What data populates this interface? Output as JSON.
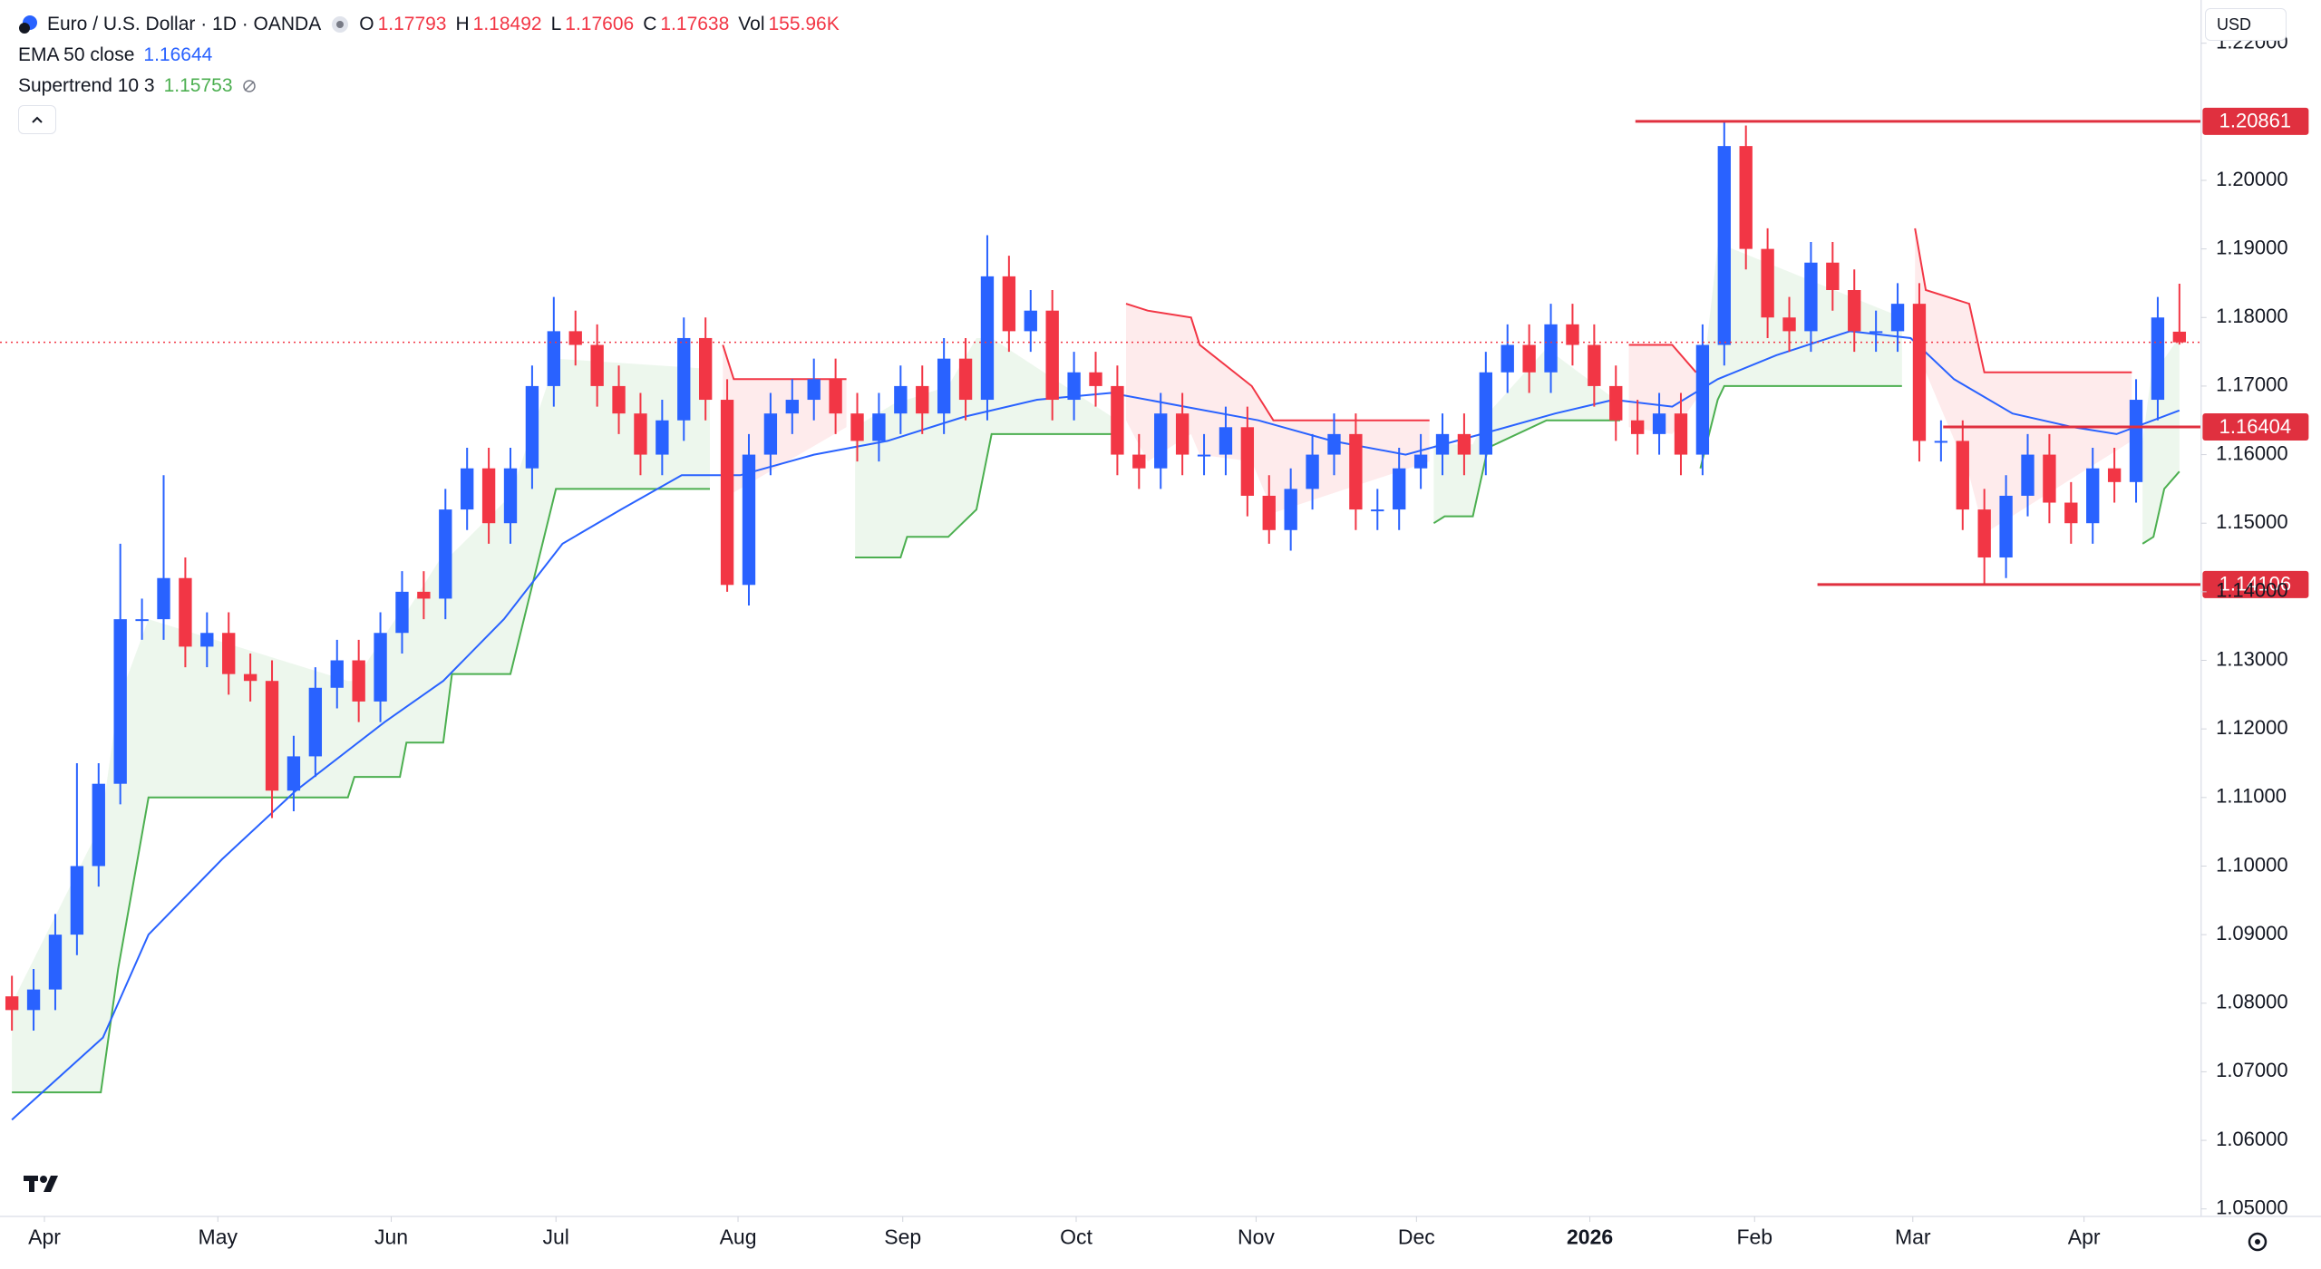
{
  "chart_data": {
    "type": "candlestick",
    "title": "Euro / U.S. Dollar · 1D · OANDA",
    "currency": "USD",
    "header": {
      "labels": [
        "O",
        "H",
        "L",
        "C"
      ],
      "volume_label": "Vol",
      "volume": 155960,
      "volume_value_label": "155.96K"
    },
    "up_color": "#2962ff",
    "down_color": "#f23645",
    "open": [
      1.081,
      1.079,
      1.082,
      1.09,
      1.1,
      1.112,
      1.136,
      1.136,
      1.142,
      1.132,
      1.134,
      1.128,
      1.127,
      1.111,
      1.116,
      1.126,
      1.13,
      1.124,
      1.134,
      1.14,
      1.139,
      1.152,
      1.158,
      1.15,
      1.158,
      1.17,
      1.178,
      1.176,
      1.17,
      1.166,
      1.16,
      1.165,
      1.177,
      1.168,
      1.141,
      1.16,
      1.166,
      1.168,
      1.171,
      1.166,
      1.162,
      1.166,
      1.17,
      1.166,
      1.174,
      1.168,
      1.186,
      1.178,
      1.181,
      1.168,
      1.172,
      1.17,
      1.16,
      1.158,
      1.166,
      1.16,
      1.16,
      1.164,
      1.154,
      1.149,
      1.155,
      1.16,
      1.163,
      1.152,
      1.152,
      1.158,
      1.16,
      1.163,
      1.16,
      1.172,
      1.176,
      1.172,
      1.179,
      1.176,
      1.17,
      1.165,
      1.163,
      1.166,
      1.16,
      1.176,
      1.205,
      1.19,
      1.18,
      1.178,
      1.188,
      1.184,
      1.178,
      1.178,
      1.182,
      1.162,
      1.162,
      1.152,
      1.145,
      1.154,
      1.16,
      1.153,
      1.15,
      1.158,
      1.156,
      1.168,
      1.17793
    ],
    "high": [
      1.084,
      1.085,
      1.093,
      1.115,
      1.115,
      1.147,
      1.139,
      1.157,
      1.145,
      1.137,
      1.137,
      1.131,
      1.13,
      1.119,
      1.129,
      1.133,
      1.133,
      1.137,
      1.143,
      1.143,
      1.155,
      1.161,
      1.161,
      1.161,
      1.173,
      1.183,
      1.181,
      1.179,
      1.173,
      1.169,
      1.168,
      1.18,
      1.18,
      1.171,
      1.163,
      1.169,
      1.171,
      1.174,
      1.174,
      1.169,
      1.169,
      1.173,
      1.173,
      1.177,
      1.177,
      1.192,
      1.189,
      1.184,
      1.184,
      1.175,
      1.175,
      1.173,
      1.163,
      1.169,
      1.169,
      1.163,
      1.167,
      1.167,
      1.157,
      1.158,
      1.163,
      1.166,
      1.166,
      1.155,
      1.161,
      1.163,
      1.166,
      1.166,
      1.175,
      1.179,
      1.179,
      1.182,
      1.182,
      1.179,
      1.173,
      1.168,
      1.169,
      1.169,
      1.179,
      1.2086,
      1.208,
      1.193,
      1.183,
      1.191,
      1.191,
      1.187,
      1.181,
      1.185,
      1.185,
      1.165,
      1.165,
      1.155,
      1.157,
      1.163,
      1.163,
      1.156,
      1.161,
      1.161,
      1.171,
      1.183,
      1.18492
    ],
    "low": [
      1.076,
      1.076,
      1.079,
      1.087,
      1.097,
      1.109,
      1.133,
      1.133,
      1.129,
      1.129,
      1.125,
      1.124,
      1.107,
      1.108,
      1.113,
      1.123,
      1.121,
      1.121,
      1.131,
      1.136,
      1.136,
      1.149,
      1.147,
      1.147,
      1.155,
      1.167,
      1.173,
      1.167,
      1.163,
      1.157,
      1.157,
      1.162,
      1.165,
      1.14,
      1.138,
      1.157,
      1.163,
      1.165,
      1.163,
      1.159,
      1.159,
      1.163,
      1.163,
      1.163,
      1.165,
      1.165,
      1.175,
      1.175,
      1.165,
      1.165,
      1.167,
      1.157,
      1.155,
      1.155,
      1.157,
      1.157,
      1.157,
      1.151,
      1.147,
      1.146,
      1.152,
      1.157,
      1.149,
      1.149,
      1.149,
      1.155,
      1.157,
      1.157,
      1.157,
      1.169,
      1.169,
      1.169,
      1.173,
      1.167,
      1.162,
      1.16,
      1.16,
      1.157,
      1.157,
      1.173,
      1.187,
      1.177,
      1.175,
      1.175,
      1.181,
      1.175,
      1.175,
      1.175,
      1.159,
      1.159,
      1.149,
      1.14106,
      1.142,
      1.151,
      1.15,
      1.147,
      1.147,
      1.153,
      1.153,
      1.165,
      1.17606
    ],
    "close": [
      1.079,
      1.082,
      1.09,
      1.1,
      1.112,
      1.136,
      1.136,
      1.142,
      1.132,
      1.134,
      1.128,
      1.127,
      1.111,
      1.116,
      1.126,
      1.13,
      1.124,
      1.134,
      1.14,
      1.139,
      1.152,
      1.158,
      1.15,
      1.158,
      1.17,
      1.178,
      1.176,
      1.17,
      1.166,
      1.16,
      1.165,
      1.177,
      1.168,
      1.141,
      1.16,
      1.166,
      1.168,
      1.171,
      1.166,
      1.162,
      1.166,
      1.17,
      1.166,
      1.174,
      1.168,
      1.186,
      1.178,
      1.181,
      1.168,
      1.172,
      1.17,
      1.16,
      1.158,
      1.166,
      1.16,
      1.16,
      1.164,
      1.154,
      1.149,
      1.155,
      1.16,
      1.163,
      1.152,
      1.152,
      1.158,
      1.16,
      1.163,
      1.16,
      1.172,
      1.176,
      1.172,
      1.179,
      1.176,
      1.17,
      1.165,
      1.163,
      1.166,
      1.16,
      1.176,
      1.205,
      1.19,
      1.18,
      1.178,
      1.188,
      1.184,
      1.178,
      1.178,
      1.182,
      1.162,
      1.162,
      1.152,
      1.145,
      1.154,
      1.16,
      1.153,
      1.15,
      1.158,
      1.156,
      1.168,
      1.18,
      1.17638
    ],
    "xlim": [
      -0.55,
      101
    ],
    "xticks": [
      {
        "value": 1.5,
        "label": "Apr"
      },
      {
        "value": 9.5,
        "label": "May"
      },
      {
        "value": 17.5,
        "label": "Jun"
      },
      {
        "value": 25.1,
        "label": "Jul"
      },
      {
        "value": 33.5,
        "label": "Aug"
      },
      {
        "value": 41.1,
        "label": "Sep"
      },
      {
        "value": 49.1,
        "label": "Oct"
      },
      {
        "value": 57.4,
        "label": "Nov"
      },
      {
        "value": 64.8,
        "label": "Dec"
      },
      {
        "value": 72.8,
        "label": "2026"
      },
      {
        "value": 80.4,
        "label": "Feb"
      },
      {
        "value": 87.7,
        "label": "Mar"
      },
      {
        "value": 95.6,
        "label": "Apr"
      }
    ],
    "ylim": [
      1.0489,
      1.2263
    ],
    "yticks": [
      {
        "value": 1.05,
        "label": "1.05000"
      },
      {
        "value": 1.06,
        "label": "1.06000"
      },
      {
        "value": 1.07,
        "label": "1.07000"
      },
      {
        "value": 1.08,
        "label": "1.08000"
      },
      {
        "value": 1.09,
        "label": "1.09000"
      },
      {
        "value": 1.1,
        "label": "1.10000"
      },
      {
        "value": 1.11,
        "label": "1.11000"
      },
      {
        "value": 1.12,
        "label": "1.12000"
      },
      {
        "value": 1.13,
        "label": "1.13000"
      },
      {
        "value": 1.14,
        "label": "1.14000"
      },
      {
        "value": 1.15,
        "label": "1.15000"
      },
      {
        "value": 1.16,
        "label": "1.16000"
      },
      {
        "value": 1.17,
        "label": "1.17000"
      },
      {
        "value": 1.18,
        "label": "1.18000"
      },
      {
        "value": 1.19,
        "label": "1.19000"
      },
      {
        "value": 1.2,
        "label": "1.20000"
      },
      {
        "value": 1.22,
        "label": "1.22000"
      }
    ],
    "ema": {
      "label": "EMA 50 close",
      "value": 1.16644,
      "color": "#2962ff",
      "x": [
        0,
        4.2,
        6.3,
        9.7,
        13.1,
        17.2,
        19.9,
        22.7,
        25.4,
        28.1,
        30.9,
        33.6,
        37.0,
        40.4,
        43.9,
        47.3,
        50.7,
        54.1,
        57.5,
        60.9,
        64.3,
        67.8,
        71.2,
        73.9,
        76.6,
        78.7,
        81.4,
        84.8,
        87.6,
        89.6,
        92.3,
        95.1,
        97.1,
        100
      ],
      "values": [
        1.063,
        1.075,
        1.09,
        1.101,
        1.111,
        1.121,
        1.127,
        1.136,
        1.147,
        1.152,
        1.157,
        1.157,
        1.16,
        1.162,
        1.1655,
        1.168,
        1.169,
        1.167,
        1.165,
        1.162,
        1.16,
        1.163,
        1.166,
        1.168,
        1.167,
        1.171,
        1.1745,
        1.178,
        1.177,
        1.171,
        1.166,
        1.164,
        1.163,
        1.16644
      ]
    },
    "supertrend": {
      "label": "Supertrend 10 3",
      "value": 1.15753,
      "up": {
        "color": "#4caf50",
        "x": [
          0,
          4.1,
          4.9,
          6.3,
          15.5,
          15.8,
          17.9,
          18.2,
          19.9,
          20.3,
          23.0,
          25.1,
          32.2,
          null,
          38.9,
          41.0,
          41.3,
          43.2,
          44.5,
          45.2,
          51.0,
          null,
          65.6,
          66.1,
          67.4,
          68.1,
          70.8,
          74.2,
          null,
          77.9,
          78.7,
          79.0,
          87.2,
          null,
          98.3,
          98.8,
          99.3,
          100
        ],
        "values": [
          1.067,
          1.067,
          1.085,
          1.11,
          1.11,
          1.113,
          1.113,
          1.118,
          1.118,
          1.128,
          1.128,
          1.155,
          1.155,
          null,
          1.145,
          1.145,
          1.148,
          1.148,
          1.152,
          1.163,
          1.163,
          null,
          1.15,
          1.151,
          1.151,
          1.161,
          1.165,
          1.165,
          null,
          1.158,
          1.168,
          1.17,
          1.17,
          null,
          1.147,
          1.148,
          1.155,
          1.15753
        ]
      },
      "down": {
        "color": "#f23645",
        "x": [
          32.8,
          33.3,
          38.5,
          null,
          51.4,
          52.4,
          54.4,
          54.8,
          57.2,
          58.2,
          65.4,
          null,
          74.6,
          76.6,
          77.7,
          null,
          87.8,
          88.3,
          90.3,
          91.0,
          97.8
        ],
        "values": [
          1.176,
          1.171,
          1.171,
          null,
          1.182,
          1.181,
          1.18,
          1.176,
          1.17,
          1.165,
          1.165,
          null,
          1.176,
          1.176,
          1.172,
          null,
          1.193,
          1.184,
          1.182,
          1.172,
          1.172
        ]
      }
    },
    "levels": [
      {
        "value": 1.20861,
        "x_start": 74.9
      },
      {
        "value": 1.16404,
        "x_start": 89.1
      },
      {
        "value": 1.14106,
        "x_start": 83.3
      }
    ],
    "level_color": "#e0303f"
  }
}
